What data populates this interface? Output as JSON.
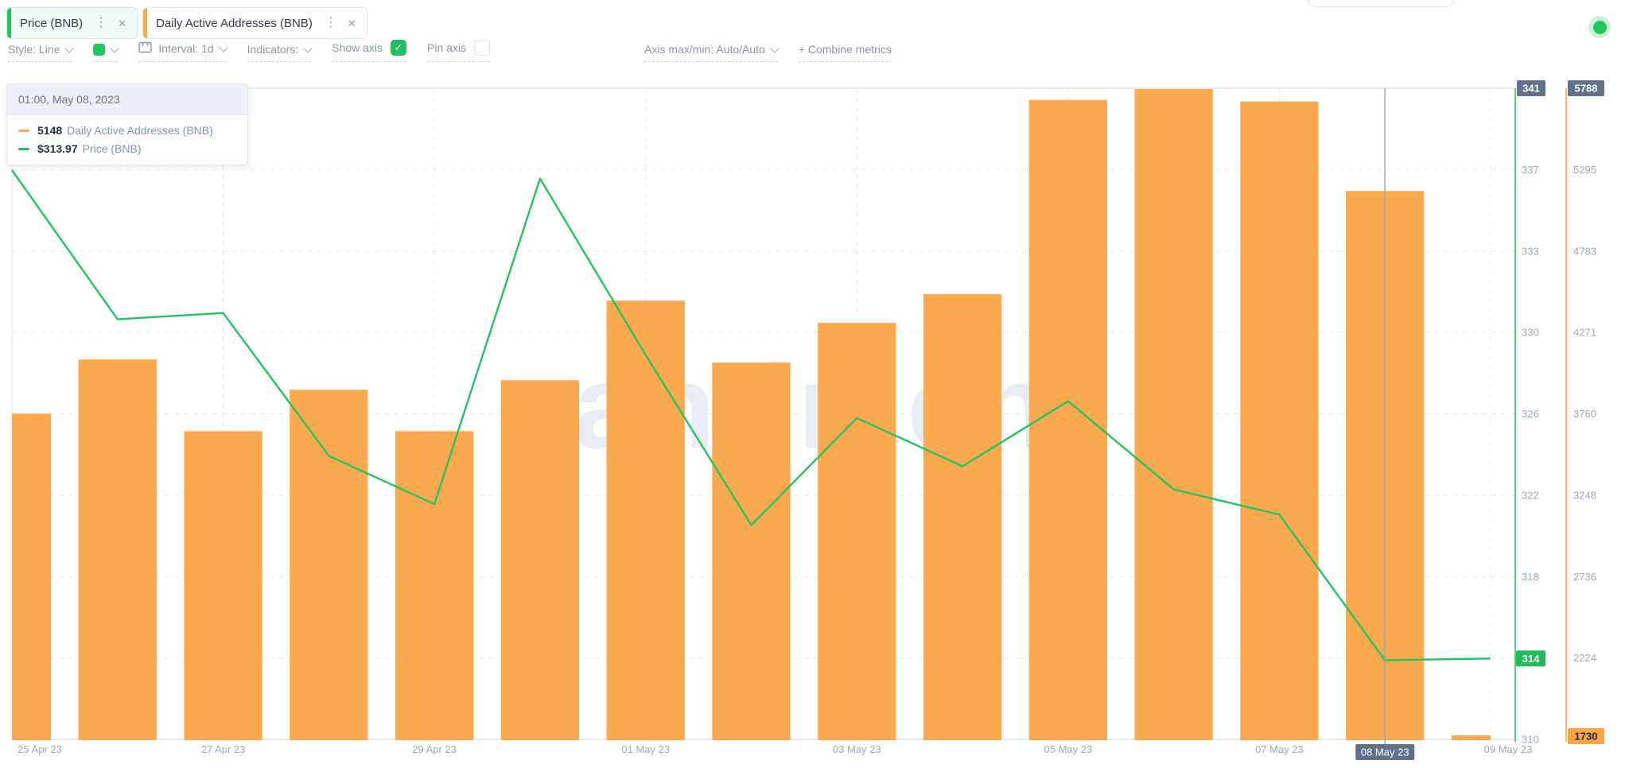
{
  "tabs": [
    {
      "label": "Price (BNB)",
      "accent_color": "#22c55e"
    },
    {
      "label": "Daily Active Addresses (BNB)",
      "accent_color": "#fba94e"
    }
  ],
  "toolbar": {
    "style_label": "Style: Line",
    "swatch_color": "#22c55e",
    "interval_label": "Interval: 1d",
    "indicators_label": "Indicators:",
    "show_axis_label": "Show axis",
    "show_axis_checked": true,
    "pin_axis_label": "Pin axis",
    "pin_axis_checked": false,
    "axis_maxmin_label": "Axis max/min: Auto/Auto",
    "combine_metrics_label": "+  Combine metrics"
  },
  "tooltip": {
    "header": "01:00, May 08, 2023",
    "rows": [
      {
        "value": "5148",
        "label": "Daily Active Addresses (BNB)",
        "color": "#fba94e"
      },
      {
        "value": "$313.97",
        "label": "Price (BNB)",
        "color": "#22c55e"
      }
    ]
  },
  "watermark": "santiment",
  "status_indicator_color": "#28c35c",
  "chart_data": {
    "type": "bar+line",
    "x": [
      "25 Apr 23",
      "26 Apr 23",
      "27 Apr 23",
      "28 Apr 23",
      "29 Apr 23",
      "30 Apr 23",
      "01 May 23",
      "02 May 23",
      "03 May 23",
      "04 May 23",
      "05 May 23",
      "06 May 23",
      "07 May 23",
      "08 May 23",
      "09 May 23"
    ],
    "series": [
      {
        "name": "Daily Active Addresses (BNB)",
        "type": "bar",
        "color": "#fba94e",
        "values": [
          3750,
          4090,
          3640,
          3900,
          3640,
          3960,
          4460,
          4070,
          4320,
          4500,
          5720,
          5788,
          5710,
          5148,
          1730
        ]
      },
      {
        "name": "Price (BNB)",
        "type": "line",
        "color": "#21c45d",
        "values": [
          337.3,
          330.2,
          330.5,
          323.7,
          321.4,
          336.9,
          328.5,
          320.4,
          325.5,
          323.2,
          326.3,
          322.1,
          320.9,
          313.97,
          314.05
        ]
      }
    ],
    "price_axis": {
      "tick_labels": [
        "341",
        "337",
        "333",
        "330",
        "326",
        "322",
        "318",
        "314",
        "310"
      ],
      "range": [
        310.2,
        341.2
      ],
      "max_badge": "341",
      "current_badge": "314",
      "axis_color": "#21c45d",
      "current_value": 314.05
    },
    "daa_axis": {
      "tick_labels": [
        "5788",
        "5295",
        "4783",
        "4271",
        "3760",
        "3248",
        "2736",
        "2224",
        "1730"
      ],
      "range": [
        1730,
        5788
      ],
      "max_badge": "5788",
      "current_badge": "1730",
      "axis_color": "#f9a543"
    },
    "x_axis_labels": [
      "25 Apr 23",
      "27 Apr 23",
      "29 Apr 23",
      "01 May 23",
      "03 May 23",
      "05 May 23",
      "07 May 23",
      "09 May 23"
    ],
    "crosshair": {
      "x_index": 13,
      "label": "08 May 23"
    },
    "grid": true,
    "legend_position": "tooltip"
  }
}
